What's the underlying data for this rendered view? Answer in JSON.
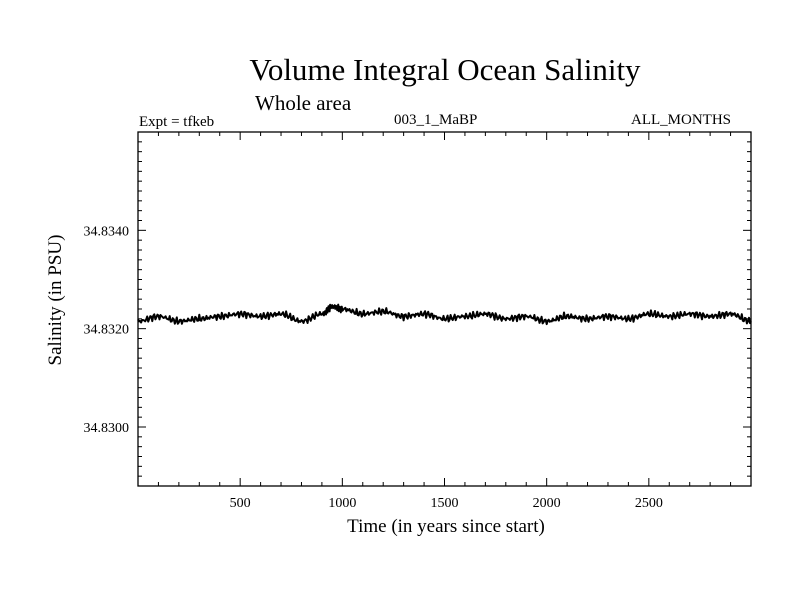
{
  "header": {
    "title": "Volume Integral Ocean Salinity",
    "subtitle": "Whole area",
    "experiment": "Expt = tfkeb",
    "run": "003_1_MaBP",
    "period": "ALL_MONTHS"
  },
  "chart_data": {
    "type": "line",
    "title": "Volume Integral Ocean Salinity",
    "subtitle": "Whole area",
    "xlabel": "Time (in years since start)",
    "ylabel": "Salinity (in PSU)",
    "xlim": [
      0,
      3000
    ],
    "ylim": [
      34.8288,
      34.836
    ],
    "x_ticks": [
      500,
      1000,
      1500,
      2000,
      2500
    ],
    "x_tick_labels": [
      "500",
      "1000",
      "1500",
      "2000",
      "2500"
    ],
    "y_ticks": [
      34.83,
      34.832,
      34.834
    ],
    "y_tick_labels": [
      "34.8300",
      "34.8320",
      "34.8340"
    ],
    "grid": false,
    "line_color": "#000000",
    "series": [
      {
        "x": [
          0,
          100,
          200,
          300,
          400,
          500,
          600,
          700,
          800,
          900,
          950,
          1000,
          1100,
          1200,
          1300,
          1400,
          1500,
          1600,
          1700,
          1800,
          1900,
          2000,
          2100,
          2200,
          2300,
          2400,
          2500,
          2600,
          2700,
          2800,
          2900,
          3000
        ],
        "y": [
          34.83215,
          34.83225,
          34.83215,
          34.8322,
          34.83225,
          34.8323,
          34.83225,
          34.8323,
          34.83215,
          34.8323,
          34.83245,
          34.8324,
          34.8323,
          34.83235,
          34.83225,
          34.8323,
          34.8322,
          34.83225,
          34.8323,
          34.8322,
          34.83225,
          34.83215,
          34.83225,
          34.8322,
          34.83225,
          34.8322,
          34.8323,
          34.83225,
          34.8323,
          34.83225,
          34.8323,
          34.83215
        ]
      }
    ]
  }
}
